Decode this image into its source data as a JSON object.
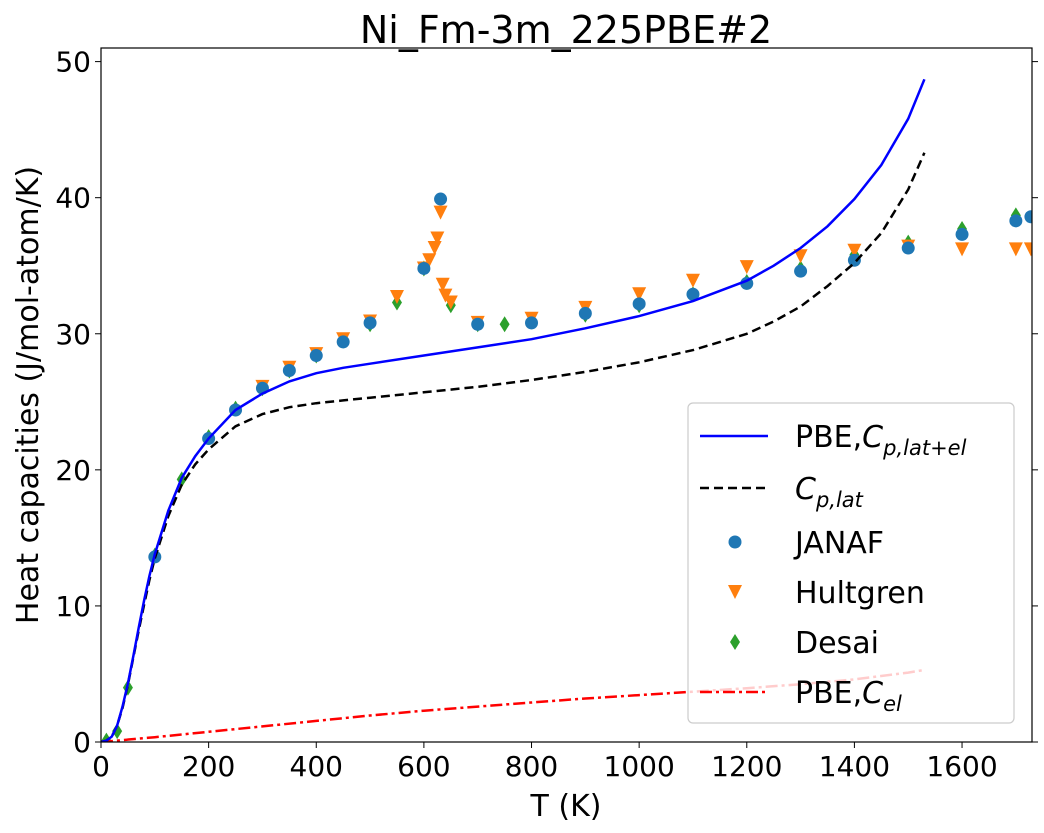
{
  "chart_data": {
    "type": "line",
    "title": "Ni_Fm-3m_225PBE#2",
    "xlabel": "T (K)",
    "ylabel": "Heat capacities (J/mol-atom/K)",
    "xlim": [
      0,
      1730
    ],
    "ylim": [
      0,
      51
    ],
    "xticks": [
      0,
      200,
      400,
      600,
      800,
      1000,
      1200,
      1400,
      1600
    ],
    "yticks": [
      0,
      10,
      20,
      30,
      40,
      50
    ],
    "grid": false,
    "legend_position": "center-right",
    "series": [
      {
        "name": "PBE,C_{p,lat+el}",
        "kind": "line",
        "style": "solid",
        "color": "#0000ff",
        "x": [
          0,
          10,
          20,
          30,
          40,
          50,
          60,
          70,
          80,
          90,
          100,
          125,
          150,
          175,
          200,
          250,
          300,
          350,
          400,
          450,
          500,
          600,
          700,
          800,
          900,
          1000,
          1100,
          1200,
          1250,
          1300,
          1350,
          1400,
          1450,
          1500,
          1530
        ],
        "y": [
          0,
          0.1,
          0.4,
          1.2,
          2.6,
          4.3,
          6.3,
          8.4,
          10.4,
          12.2,
          13.8,
          17.0,
          19.4,
          21.0,
          22.3,
          24.4,
          25.6,
          26.5,
          27.1,
          27.5,
          27.8,
          28.4,
          29.0,
          29.6,
          30.4,
          31.3,
          32.4,
          33.9,
          35.0,
          36.3,
          37.9,
          39.9,
          42.4,
          45.8,
          48.7
        ]
      },
      {
        "name": "C_{p,lat}",
        "kind": "line",
        "style": "dashed",
        "color": "#000000",
        "x": [
          0,
          10,
          20,
          30,
          40,
          50,
          60,
          70,
          80,
          90,
          100,
          125,
          150,
          175,
          200,
          250,
          300,
          350,
          400,
          450,
          500,
          600,
          700,
          800,
          900,
          1000,
          1100,
          1200,
          1250,
          1300,
          1350,
          1400,
          1450,
          1500,
          1530
        ],
        "y": [
          0,
          0.1,
          0.4,
          1.2,
          2.5,
          4.2,
          6.2,
          8.2,
          10.1,
          11.9,
          13.5,
          16.6,
          18.9,
          20.4,
          21.5,
          23.2,
          24.1,
          24.6,
          24.9,
          25.1,
          25.3,
          25.7,
          26.1,
          26.6,
          27.2,
          27.9,
          28.8,
          30.0,
          30.9,
          32.0,
          33.5,
          35.2,
          37.4,
          40.6,
          43.3
        ]
      },
      {
        "name": "JANAF",
        "kind": "scatter",
        "marker": "circle",
        "color": "#1f77b4",
        "x": [
          100,
          200,
          250,
          300,
          350,
          400,
          450,
          500,
          600,
          631,
          700,
          800,
          900,
          1000,
          1100,
          1200,
          1300,
          1400,
          1500,
          1600,
          1700,
          1728
        ],
        "y": [
          13.6,
          22.3,
          24.4,
          26.0,
          27.3,
          28.4,
          29.4,
          30.8,
          34.8,
          39.9,
          30.7,
          30.8,
          31.5,
          32.2,
          32.9,
          33.7,
          34.6,
          35.4,
          36.3,
          37.3,
          38.3,
          38.6
        ]
      },
      {
        "name": "Hultgren",
        "kind": "scatter",
        "marker": "triangle-down",
        "color": "#ff7f0e",
        "x": [
          300,
          350,
          400,
          450,
          500,
          550,
          600,
          610,
          620,
          625,
          631,
          635,
          640,
          650,
          700,
          800,
          900,
          1000,
          1100,
          1200,
          1300,
          1400,
          1500,
          1600,
          1700,
          1728
        ],
        "y": [
          26.1,
          27.5,
          28.5,
          29.6,
          30.9,
          32.7,
          34.8,
          35.4,
          36.3,
          37.0,
          38.9,
          33.6,
          32.8,
          32.3,
          30.8,
          31.1,
          31.9,
          32.9,
          33.9,
          34.9,
          35.7,
          36.1,
          36.4,
          36.2,
          36.2,
          36.2
        ]
      },
      {
        "name": "Desai",
        "kind": "scatter",
        "marker": "thin-diamond",
        "color": "#2ca02c",
        "x": [
          10,
          30,
          50,
          100,
          150,
          200,
          250,
          300,
          350,
          400,
          450,
          500,
          550,
          600,
          650,
          700,
          750,
          800,
          900,
          1000,
          1100,
          1200,
          1300,
          1400,
          1500,
          1600,
          1700
        ],
        "y": [
          0.1,
          0.8,
          4.0,
          13.7,
          19.3,
          22.4,
          24.5,
          26.0,
          27.3,
          28.4,
          29.5,
          30.7,
          32.3,
          34.8,
          32.1,
          30.7,
          30.7,
          30.9,
          31.4,
          32.1,
          32.9,
          33.8,
          34.8,
          35.8,
          36.7,
          37.7,
          38.7
        ]
      },
      {
        "name": "PBE,C_{el}",
        "kind": "line",
        "style": "dashdot",
        "color": "#ff0000",
        "x": [
          0,
          100,
          200,
          300,
          400,
          500,
          600,
          700,
          800,
          900,
          1000,
          1100,
          1200,
          1300,
          1400,
          1500,
          1530
        ],
        "y": [
          0,
          0.35,
          0.75,
          1.15,
          1.55,
          1.95,
          2.3,
          2.6,
          2.9,
          3.2,
          3.45,
          3.7,
          3.95,
          4.25,
          4.6,
          5.1,
          5.3
        ]
      }
    ]
  }
}
